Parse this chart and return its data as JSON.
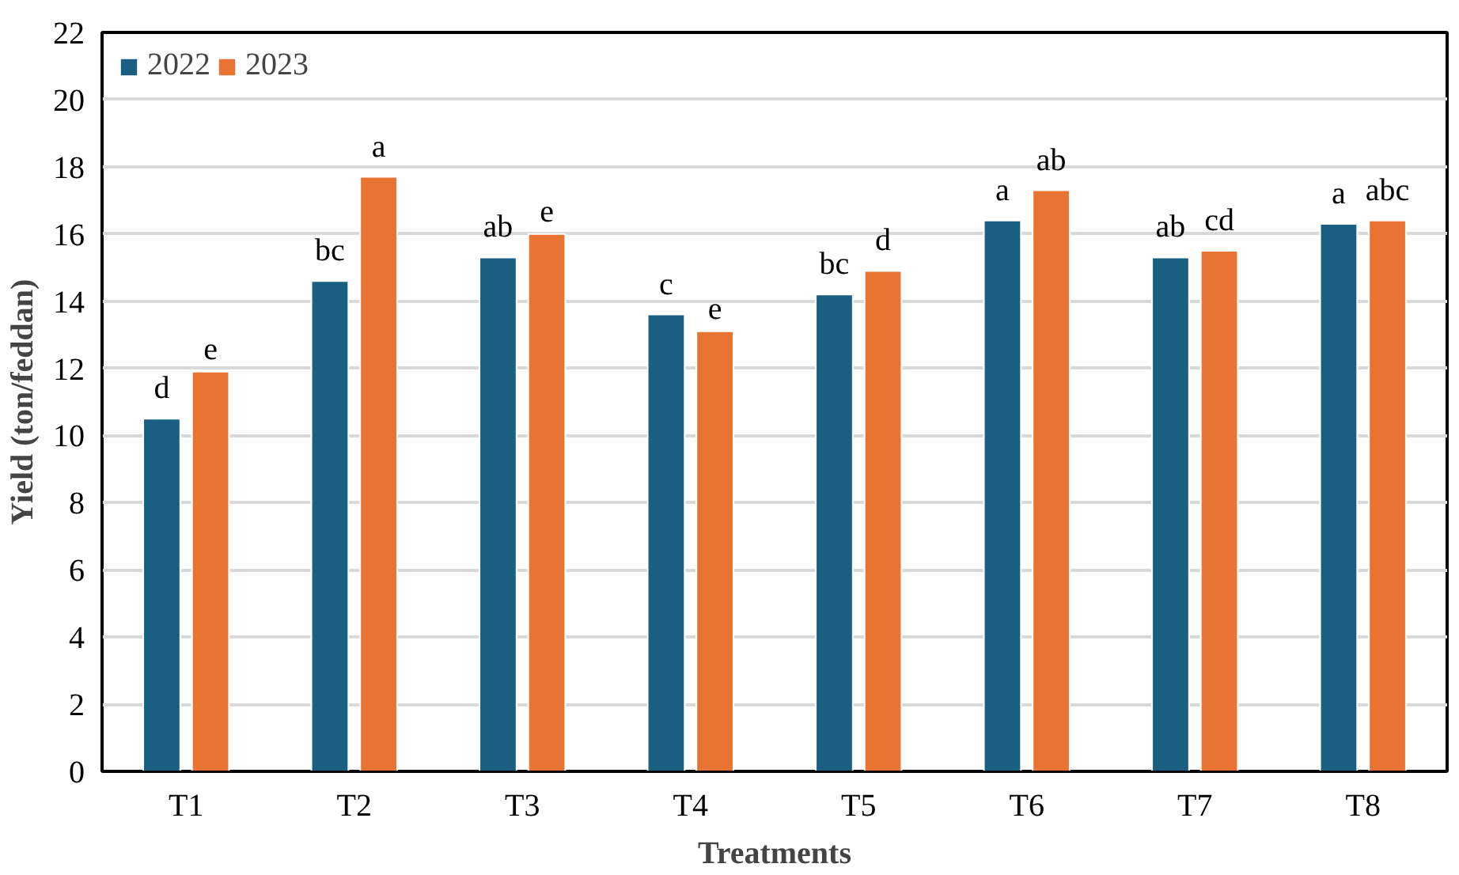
{
  "chart_data": {
    "type": "bar",
    "xlabel": "Treatments",
    "ylabel": "Yield (ton/feddan)",
    "categories": [
      "T1",
      "T2",
      "T3",
      "T4",
      "T5",
      "T6",
      "T7",
      "T8"
    ],
    "series": [
      {
        "name": "2022",
        "color": "#185f82",
        "values": [
          10.5,
          14.6,
          15.3,
          13.6,
          14.2,
          16.4,
          15.3,
          16.3
        ],
        "value_labels": [
          "d",
          "bc",
          "ab",
          "c",
          "bc",
          "a",
          "ab",
          "a"
        ]
      },
      {
        "name": "2023",
        "color": "#e97333",
        "values": [
          11.9,
          17.7,
          16.0,
          13.1,
          14.9,
          17.3,
          15.5,
          16.4
        ],
        "value_labels": [
          "e",
          "a",
          "e",
          "e",
          "d",
          "ab",
          "cd",
          "abc"
        ]
      }
    ],
    "ylim": [
      0,
      22
    ],
    "yticks": [
      0,
      2,
      4,
      6,
      8,
      10,
      12,
      14,
      16,
      18,
      20,
      22
    ],
    "grid": "y",
    "legend": "top left"
  }
}
